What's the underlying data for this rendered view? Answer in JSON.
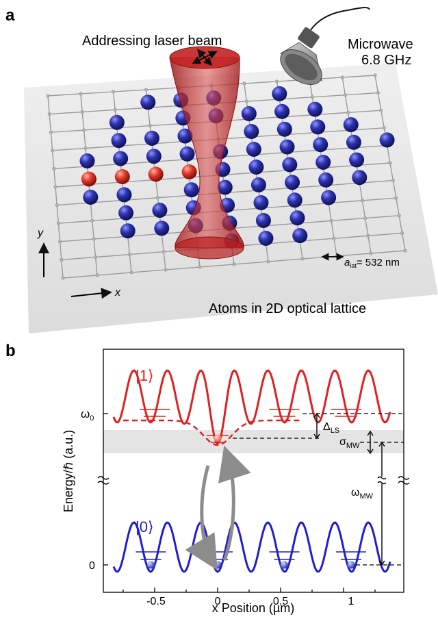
{
  "panel_a": {
    "label": "a",
    "laser_label": "Addressing laser beam",
    "microwave_label_1": "Microwave",
    "microwave_label_2": "6.8 GHz",
    "lattice_label": "Atoms in 2D optical lattice",
    "axis_x": "x",
    "axis_y": "y",
    "scale_symbol": "a",
    "scale_sub": "lat",
    "scale_value": "= 532 nm",
    "colors": {
      "atom_blue": "#2a2f9e",
      "atom_red": "#e02525",
      "laser": "#b81e1e",
      "plate": "#e6e6e6"
    }
  },
  "panel_b": {
    "label": "b",
    "state_1": "|1⟩",
    "state_0": "|0⟩",
    "ylabel": "Energy/ℏ (a.u.)",
    "xlabel": "x Position (µm)",
    "ytick_omega0": "ω",
    "ytick_omega0_sub": "0",
    "ytick_zero": "0",
    "xticks": [
      "-0.5",
      "0",
      "0.5",
      "1"
    ],
    "delta_ls": "Δ",
    "delta_ls_sub": "LS",
    "sigma_mw": "σ",
    "sigma_mw_sub": "MW",
    "omega_mw": "ω",
    "omega_mw_sub": "MW",
    "colors": {
      "upper": "#e0201e",
      "lower": "#1e1ed2",
      "band": "#e4e4e4",
      "arrow": "#8c8c8c"
    }
  }
}
